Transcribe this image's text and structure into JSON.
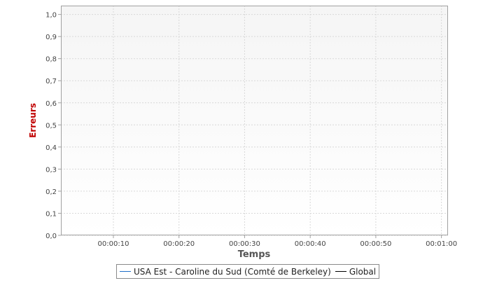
{
  "chart_data": {
    "type": "line",
    "title": "",
    "xlabel": "Temps",
    "ylabel": "Erreurs",
    "x_tick_labels": [
      "00:00:10",
      "00:00:20",
      "00:00:30",
      "00:00:40",
      "00:00:50",
      "00:01:00"
    ],
    "y_tick_labels": [
      "0,0",
      "0,1",
      "0,2",
      "0,3",
      "0,4",
      "0,5",
      "0,6",
      "0,7",
      "0,8",
      "0,9",
      "1,0"
    ],
    "xlim": [
      "00:00:02",
      "00:01:01"
    ],
    "ylim": [
      0,
      1.04
    ],
    "grid": true,
    "legend_position": "bottom",
    "series": [
      {
        "name": "USA Est - Caroline du Sud (Comté de Berkeley)",
        "color": "#1f6fc8",
        "x": [],
        "y": []
      },
      {
        "name": "Global",
        "color": "#000000",
        "x": [],
        "y": []
      }
    ],
    "colors": {
      "ylabel": "#c00000",
      "xlabel": "#555555",
      "plot_bg_top": "#f5f5f5",
      "plot_bg_bottom": "#ffffff",
      "grid": "#d8d8d8",
      "axis": "#a0a0a0"
    }
  }
}
